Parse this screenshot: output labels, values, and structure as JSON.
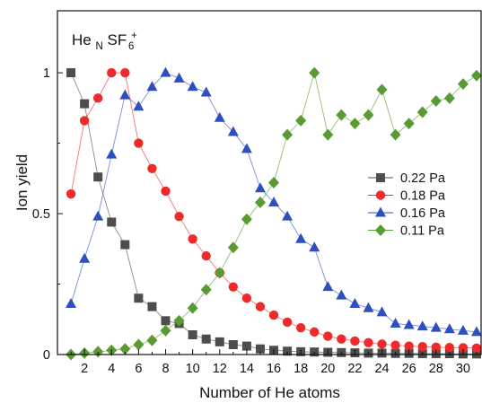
{
  "chart_data": {
    "type": "line",
    "xlabel": "Number of He atoms",
    "ylabel": "Ion yield",
    "annotation": {
      "base": "He",
      "sub1": "N",
      "mid": " SF",
      "sub2": "6",
      "sup": "+"
    },
    "xlim": [
      0,
      31.4
    ],
    "ylim": [
      0,
      1.22
    ],
    "x_ticks": [
      2,
      4,
      6,
      8,
      10,
      12,
      14,
      16,
      18,
      20,
      22,
      24,
      26,
      28,
      30
    ],
    "x_tick_labels": [
      "2",
      "4",
      "6",
      "8",
      "10",
      "12",
      "14",
      "16",
      "18",
      "20",
      "22",
      "24",
      "26",
      "28",
      "30"
    ],
    "y_ticks": [
      0,
      0.5,
      1
    ],
    "y_tick_labels": [
      "0",
      "0.5",
      "1"
    ],
    "grid": false,
    "legend_position": "right",
    "x": [
      1,
      2,
      3,
      4,
      5,
      6,
      7,
      8,
      9,
      10,
      11,
      12,
      13,
      14,
      15,
      16,
      17,
      18,
      19,
      20,
      21,
      22,
      23,
      24,
      25,
      26,
      27,
      28,
      29,
      30,
      31
    ],
    "series": [
      {
        "name": "0.22 Pa",
        "color": "#4d4d4d",
        "marker": "square",
        "values": [
          1.0,
          0.89,
          0.63,
          0.47,
          0.39,
          0.2,
          0.17,
          0.12,
          0.11,
          0.07,
          0.055,
          0.045,
          0.035,
          0.03,
          0.02,
          0.015,
          0.012,
          0.01,
          0.009,
          0.008,
          0.007,
          0.006,
          0.005,
          0.005,
          0.004,
          0.004,
          0.003,
          0.003,
          0.003,
          0.002,
          0.002
        ]
      },
      {
        "name": "0.18 Pa",
        "color": "#ee2a2a",
        "marker": "circle",
        "values": [
          0.57,
          0.83,
          0.91,
          1.0,
          1.0,
          0.75,
          0.66,
          0.58,
          0.49,
          0.41,
          0.35,
          0.29,
          0.24,
          0.2,
          0.17,
          0.14,
          0.115,
          0.095,
          0.08,
          0.065,
          0.055,
          0.048,
          0.042,
          0.037,
          0.033,
          0.03,
          0.028,
          0.026,
          0.025,
          0.024,
          0.023
        ]
      },
      {
        "name": "0.16 Pa",
        "color": "#2d4fc0",
        "marker": "triangle",
        "values": [
          0.18,
          0.34,
          0.49,
          0.71,
          0.92,
          0.88,
          0.95,
          1.0,
          0.98,
          0.95,
          0.93,
          0.84,
          0.79,
          0.73,
          0.59,
          0.54,
          0.49,
          0.41,
          0.38,
          0.24,
          0.21,
          0.18,
          0.165,
          0.15,
          0.11,
          0.105,
          0.1,
          0.095,
          0.09,
          0.085,
          0.08
        ]
      },
      {
        "name": "0.11 Pa",
        "color": "#5a9a32",
        "marker": "diamond",
        "values": [
          0.0,
          0.005,
          0.01,
          0.015,
          0.02,
          0.035,
          0.05,
          0.085,
          0.12,
          0.165,
          0.23,
          0.29,
          0.38,
          0.48,
          0.54,
          0.61,
          0.78,
          0.83,
          1.0,
          0.78,
          0.85,
          0.82,
          0.85,
          0.94,
          0.78,
          0.82,
          0.86,
          0.9,
          0.91,
          0.96,
          0.99
        ]
      }
    ]
  }
}
